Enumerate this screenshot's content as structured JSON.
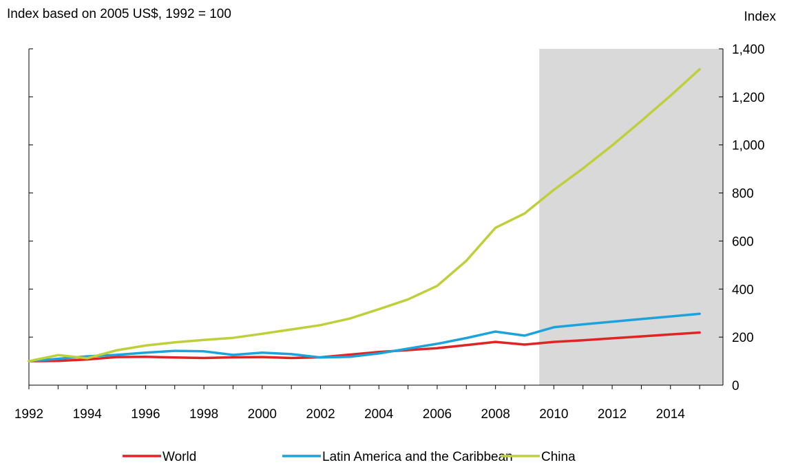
{
  "chart_data": {
    "type": "line",
    "subtitle": "Index based on 2005 US$, 1992 = 100",
    "y_axis_title": "Index",
    "y_axis_side": "right",
    "xlim": [
      1992,
      2015.8
    ],
    "ylim": [
      0,
      1400
    ],
    "x_ticks": [
      1992,
      1994,
      1996,
      1998,
      2000,
      2002,
      2004,
      2006,
      2008,
      2010,
      2012,
      2014
    ],
    "x_tick_labels": [
      "1992",
      "1994",
      "1996",
      "1998",
      "2000",
      "2002",
      "2004",
      "2006",
      "2008",
      "2010",
      "2012",
      "2014"
    ],
    "y_ticks": [
      0,
      200,
      400,
      600,
      800,
      1000,
      1200,
      1400
    ],
    "y_tick_labels": [
      "0",
      "200",
      "400",
      "600",
      "800",
      "1,000",
      "1,200",
      "1,400"
    ],
    "grid": false,
    "legend_position": "bottom",
    "shaded_region": {
      "x_start": 2009.5,
      "x_end": 2015.8,
      "color": "#d9d9d9"
    },
    "x": [
      1992,
      1993,
      1994,
      1995,
      1996,
      1997,
      1998,
      1999,
      2000,
      2001,
      2002,
      2003,
      2004,
      2005,
      2006,
      2007,
      2008,
      2009,
      2010,
      2011,
      2012,
      2013,
      2014,
      2015
    ],
    "series": [
      {
        "name": "World",
        "color": "#e02424",
        "values": [
          100,
          101,
          107,
          117,
          118,
          115,
          113,
          116,
          117,
          113,
          116,
          127,
          138,
          146,
          154,
          167,
          180,
          169,
          180,
          187,
          195,
          203,
          211,
          219
        ]
      },
      {
        "name": "Latin America and the Caribbean",
        "color": "#1ba3dc",
        "values": [
          100,
          110,
          120,
          126,
          135,
          143,
          141,
          126,
          135,
          129,
          115,
          118,
          132,
          152,
          172,
          196,
          223,
          206,
          241,
          253,
          264,
          275,
          286,
          297
        ]
      },
      {
        "name": "China",
        "color": "#bfcf3a",
        "values": [
          100,
          125,
          112,
          145,
          165,
          178,
          188,
          197,
          214,
          232,
          250,
          277,
          316,
          357,
          413,
          518,
          655,
          715,
          813,
          902,
          998,
          1100,
          1205,
          1315
        ]
      }
    ]
  }
}
